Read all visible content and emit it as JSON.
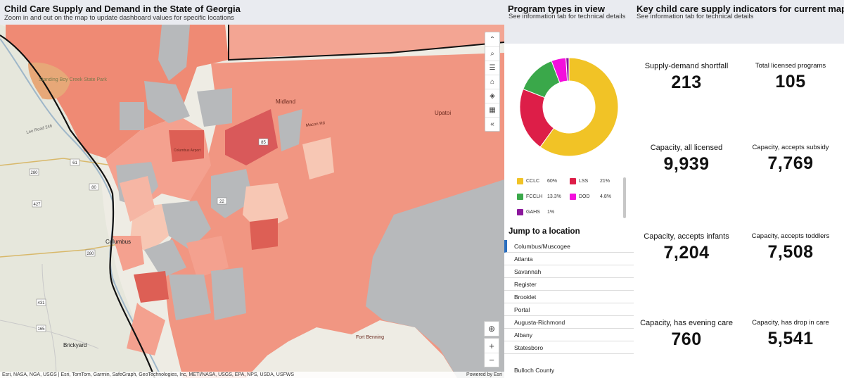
{
  "map": {
    "title": "Child Care Supply and Demand in the State of Georgia",
    "subtitle": "Zoom in and out on the map to update dashboard values for specific locations",
    "place_labels": [
      "Standing Boy Creek State Park",
      "Midland",
      "Upatoi",
      "Columbus",
      "Brickyard",
      "Fort Benning",
      "Lee Road 246",
      "Macon Rd",
      "Columbus Airport"
    ],
    "road_shields": [
      "61",
      "280",
      "80",
      "427",
      "280",
      "431",
      "165",
      "22",
      "85"
    ],
    "tools": [
      {
        "icon": "chevron-up-icon",
        "glyph": "⌃"
      },
      {
        "icon": "search-icon",
        "glyph": "⌕"
      },
      {
        "icon": "list-icon",
        "glyph": "☰"
      },
      {
        "icon": "home-icon",
        "glyph": "⌂"
      },
      {
        "icon": "layers-icon",
        "glyph": "◈"
      },
      {
        "icon": "qr-code-icon",
        "glyph": "▦"
      },
      {
        "icon": "collapse-icon",
        "glyph": "«"
      }
    ],
    "locate_glyph": "⊕",
    "zoom_in": "+",
    "zoom_out": "−",
    "attribution": "Esri, NASA, NGA, USGS | Esri, TomTom, Garmin, SafeGraph, GeoTechnologies, Inc, METI/NASA, USGS, EPA, NPS, USDA, USFWS",
    "powered_by": "Powered by Esri"
  },
  "program": {
    "title": "Program types in view",
    "subtitle": "See information tab for technical details",
    "jump_title": "Jump to a location",
    "jump_locations": [
      "Columbus/Muscogee",
      "Atlanta",
      "Savannah",
      "Register",
      "Brooklet",
      "Portal",
      "Augusta-Richmond",
      "Albany",
      "Statesboro"
    ],
    "jump_extra": "Bulloch County"
  },
  "chart_data": {
    "type": "pie",
    "categories": [
      "CCLC",
      "LSS",
      "FCCLH",
      "DOD",
      "GAHS"
    ],
    "values": [
      60,
      21,
      13.3,
      4.8,
      1
    ],
    "value_labels": [
      "60%",
      "21%",
      "13.3%",
      "4.8%",
      "1%"
    ],
    "colors": [
      "#f1c326",
      "#dd1e48",
      "#3aa84a",
      "#f40fdc",
      "#8b189c"
    ],
    "donut": true,
    "legend_placement": "bottom"
  },
  "indicators": {
    "title": "Key child care supply indicators for current map view",
    "subtitle": "See information tab for technical details",
    "kpis": [
      {
        "label": "Supply-demand shortfall",
        "value": "213"
      },
      {
        "label": "Total licensed programs",
        "value": "105"
      },
      {
        "label": "Capacity, all licensed",
        "value": "9,939"
      },
      {
        "label": "Capacity, accepts subsidy",
        "value": "7,769"
      },
      {
        "label": "Capacity, accepts infants",
        "value": "7,204"
      },
      {
        "label": "Capacity, accepts toddlers",
        "value": "7,508"
      },
      {
        "label": "Capacity, has evening care",
        "value": "760"
      },
      {
        "label": "Capacity, has drop in care",
        "value": "5,541"
      }
    ]
  }
}
